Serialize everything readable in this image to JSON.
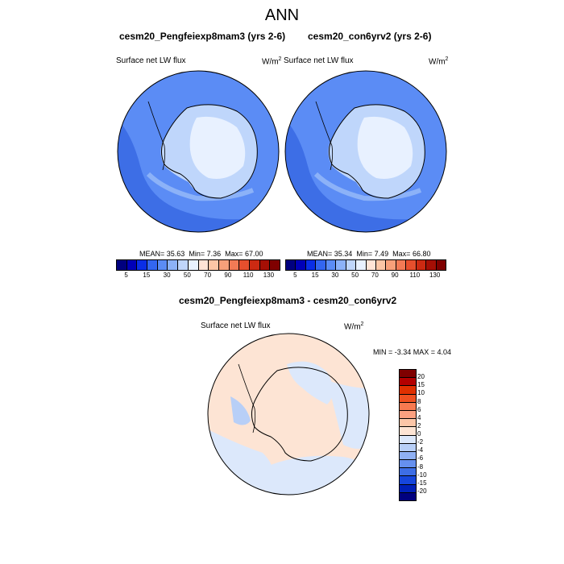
{
  "title": "ANN",
  "panels": [
    {
      "title": "cesm20_Pengfeiexp8mam3 (yrs 2-6)",
      "variable": "Surface net LW flux",
      "unit": "W/m",
      "unit_sup": "2",
      "stats": {
        "mean": "35.63",
        "min": "7.36",
        "max": "67.00"
      }
    },
    {
      "title": "cesm20_con6yrv2 (yrs 2-6)",
      "variable": "Surface net LW flux",
      "unit": "W/m",
      "unit_sup": "2",
      "stats": {
        "mean": "35.34",
        "min": "7.49",
        "max": "66.80"
      }
    }
  ],
  "stats_labels": {
    "mean": "MEAN=",
    "min": "Min=",
    "max": "Max="
  },
  "diff": {
    "title": "cesm20_Pengfeiexp8mam3 - cesm20_con6yrv2",
    "variable": "Surface net LW flux",
    "unit": "W/m",
    "unit_sup": "2",
    "minmax": "MIN =  -3.34 MAX =   4.04"
  },
  "colorbar_main": {
    "colors": [
      "#00007f",
      "#0000b8",
      "#0a2ee6",
      "#3366f0",
      "#5b8cf5",
      "#8cb2f8",
      "#bfd6fb",
      "#e8f1ff",
      "#ffe4d6",
      "#fcc6a6",
      "#f8a07a",
      "#f27a55",
      "#e64f2d",
      "#cc2a12",
      "#a50f05",
      "#7f0000"
    ],
    "labels": [
      "5",
      "15",
      "30",
      "50",
      "70",
      "90",
      "110",
      "130"
    ]
  },
  "colorbar_diff": {
    "colors": [
      "#7f0000",
      "#b30000",
      "#e03000",
      "#f05020",
      "#f87a50",
      "#fba080",
      "#fcc6a8",
      "#fde4d4",
      "#dce8fb",
      "#b8cff7",
      "#8fb0f3",
      "#6690ee",
      "#3d6ee6",
      "#1646dc",
      "#0020b8",
      "#00007f"
    ],
    "labels": [
      "20",
      "15",
      "10",
      "8",
      "6",
      "4",
      "2",
      "0",
      "-2",
      "-4",
      "-6",
      "-8",
      "-10",
      "-15",
      "-20"
    ]
  },
  "icons": {
    "map_panel": "antarctica-polar-map"
  }
}
